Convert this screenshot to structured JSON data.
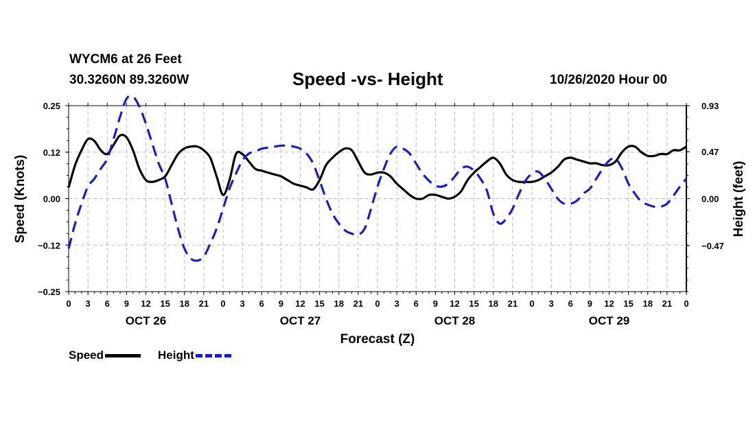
{
  "header": {
    "station": "WYCM6 at 26 Feet",
    "coords": "30.3260N 89.3260W",
    "title": "Speed -vs- Height",
    "datetime": "10/26/2020 Hour 00"
  },
  "legend": {
    "speed_label": "Speed",
    "height_label": "Height"
  },
  "colors": {
    "speed": "#000000",
    "height": "#1a1ad6",
    "grid": "#bbbbbb"
  },
  "chart_data": {
    "type": "line",
    "title": "Speed -vs- Height",
    "xlabel": "Forecast (Z)",
    "ylabel_left": "Speed (Knots)",
    "ylabel_right": "Height (feet)",
    "grid": true,
    "xlim": [
      0,
      96
    ],
    "ylim_left": [
      -0.25,
      0.25
    ],
    "ylim_right": [
      -0.93,
      0.93
    ],
    "x_tick_labels": [
      "0",
      "3",
      "6",
      "9",
      "12",
      "15",
      "18",
      "21",
      "0",
      "3",
      "6",
      "9",
      "12",
      "15",
      "18",
      "21",
      "0",
      "3",
      "6",
      "9",
      "12",
      "15",
      "18",
      "21",
      "0",
      "3",
      "6",
      "9",
      "12",
      "15",
      "18",
      "21",
      "0"
    ],
    "day_labels": [
      {
        "label": "OCT 26",
        "x": 12
      },
      {
        "label": "OCT 27",
        "x": 36
      },
      {
        "label": "OCT 28",
        "x": 60
      },
      {
        "label": "OCT 29",
        "x": 84
      }
    ],
    "y_left_ticks": [
      {
        "value": 0.25,
        "label": "0.25"
      },
      {
        "value": 0.125,
        "label": "0.12"
      },
      {
        "value": 0.0,
        "label": "0.00"
      },
      {
        "value": -0.125,
        "label": "−0.12"
      },
      {
        "value": -0.25,
        "label": "−0.25"
      }
    ],
    "y_right_ticks": [
      {
        "value": 0.93,
        "label": "0.93"
      },
      {
        "value": 0.47,
        "label": "0.47"
      },
      {
        "value": 0.0,
        "label": "0.00"
      },
      {
        "value": -0.47,
        "label": "−0.47"
      }
    ],
    "series": [
      {
        "name": "Speed",
        "axis": "left",
        "x": [
          0,
          1,
          2,
          3,
          4,
          5,
          6,
          7,
          8,
          9,
          10,
          11,
          12,
          13,
          14,
          15,
          16,
          17,
          18,
          19,
          20,
          21,
          22,
          23,
          24,
          25,
          26,
          27,
          28,
          29,
          30,
          31,
          32,
          33,
          34,
          35,
          36,
          37,
          38,
          39,
          40,
          41,
          42,
          43,
          44,
          45,
          46,
          47,
          48,
          49,
          50,
          51,
          52,
          53,
          54,
          55,
          56,
          57,
          58,
          59,
          60,
          61,
          62,
          63,
          64,
          65,
          66,
          67,
          68,
          69,
          70,
          71,
          72,
          73,
          74,
          75,
          76,
          77,
          78,
          79,
          80,
          81,
          82,
          83,
          84,
          85,
          86,
          87,
          88,
          89,
          90,
          91,
          92,
          93,
          94,
          95,
          96
        ],
        "values": [
          0.03,
          0.09,
          0.13,
          0.16,
          0.155,
          0.13,
          0.12,
          0.145,
          0.17,
          0.165,
          0.13,
          0.08,
          0.05,
          0.045,
          0.05,
          0.06,
          0.09,
          0.12,
          0.135,
          0.14,
          0.14,
          0.13,
          0.11,
          0.06,
          0.01,
          0.05,
          0.12,
          0.12,
          0.1,
          0.08,
          0.075,
          0.07,
          0.065,
          0.06,
          0.05,
          0.04,
          0.035,
          0.03,
          0.025,
          0.05,
          0.09,
          0.11,
          0.125,
          0.135,
          0.13,
          0.1,
          0.07,
          0.065,
          0.07,
          0.07,
          0.06,
          0.04,
          0.025,
          0.01,
          0.0,
          0.0,
          0.01,
          0.01,
          0.005,
          0.0,
          0.005,
          0.02,
          0.05,
          0.07,
          0.085,
          0.1,
          0.11,
          0.095,
          0.065,
          0.05,
          0.045,
          0.045,
          0.045,
          0.05,
          0.06,
          0.07,
          0.085,
          0.105,
          0.11,
          0.105,
          0.1,
          0.095,
          0.095,
          0.09,
          0.09,
          0.1,
          0.125,
          0.14,
          0.14,
          0.125,
          0.115,
          0.115,
          0.12,
          0.12,
          0.13,
          0.13,
          0.14
        ]
      },
      {
        "name": "Height",
        "axis": "right",
        "x": [
          0,
          1,
          2,
          3,
          4,
          5,
          6,
          7,
          8,
          9,
          10,
          11,
          12,
          13,
          14,
          15,
          16,
          17,
          18,
          19,
          20,
          21,
          22,
          23,
          24,
          25,
          26,
          27,
          28,
          29,
          30,
          31,
          32,
          33,
          34,
          35,
          36,
          37,
          38,
          39,
          40,
          41,
          42,
          43,
          44,
          45,
          46,
          47,
          48,
          49,
          50,
          51,
          52,
          53,
          54,
          55,
          56,
          57,
          58,
          59,
          60,
          61,
          62,
          63,
          64,
          65,
          66,
          67,
          68,
          69,
          70,
          71,
          72,
          73,
          74,
          75,
          76,
          77,
          78,
          79,
          80,
          81,
          82,
          83,
          84,
          85,
          86,
          87,
          88,
          89,
          90,
          91,
          92,
          93,
          94,
          95,
          96
        ],
        "values": [
          -0.5,
          -0.25,
          -0.05,
          0.12,
          0.2,
          0.3,
          0.4,
          0.6,
          0.82,
          1.0,
          1.02,
          0.92,
          0.75,
          0.55,
          0.35,
          0.2,
          -0.05,
          -0.3,
          -0.5,
          -0.6,
          -0.62,
          -0.58,
          -0.45,
          -0.3,
          -0.1,
          0.1,
          0.25,
          0.38,
          0.45,
          0.47,
          0.5,
          0.51,
          0.52,
          0.53,
          0.53,
          0.52,
          0.5,
          0.45,
          0.35,
          0.18,
          0.0,
          -0.15,
          -0.25,
          -0.32,
          -0.35,
          -0.36,
          -0.3,
          -0.1,
          0.12,
          0.3,
          0.45,
          0.52,
          0.5,
          0.45,
          0.35,
          0.25,
          0.18,
          0.13,
          0.12,
          0.15,
          0.22,
          0.3,
          0.32,
          0.28,
          0.2,
          0.08,
          -0.15,
          -0.25,
          -0.2,
          -0.1,
          0.05,
          0.18,
          0.25,
          0.27,
          0.2,
          0.1,
          0.0,
          -0.05,
          -0.05,
          -0.02,
          0.05,
          0.1,
          0.2,
          0.3,
          0.38,
          0.4,
          0.3,
          0.15,
          0.05,
          -0.03,
          -0.06,
          -0.08,
          -0.08,
          -0.05,
          0.03,
          0.12,
          0.2
        ]
      }
    ]
  }
}
